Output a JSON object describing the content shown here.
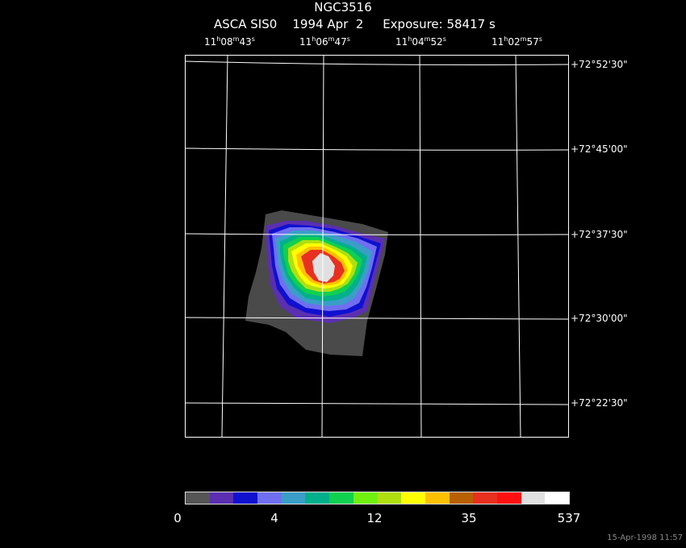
{
  "header": {
    "object": "NGC3516",
    "instrument": "ASCA SIS0",
    "date": "1994 Apr  2",
    "exposure": "Exposure: 58417 s"
  },
  "ra_labels": [
    {
      "h": "11",
      "m": "08",
      "s": "43"
    },
    {
      "h": "11",
      "m": "06",
      "s": "47"
    },
    {
      "h": "11",
      "m": "04",
      "s": "52"
    },
    {
      "h": "11",
      "m": "02",
      "s": "57"
    }
  ],
  "dec_labels": [
    "+72°52'30\"",
    "+72°45'00\"",
    "+72°37'30\"",
    "+72°30'00\"",
    "+72°22'30\""
  ],
  "colorbar": {
    "colors": [
      "#555555",
      "#5a2fb0",
      "#1010d0",
      "#6f6ff0",
      "#3a9ec8",
      "#00b08a",
      "#10d050",
      "#70f010",
      "#b0e010",
      "#ffff00",
      "#ffc000",
      "#b86000",
      "#e83020",
      "#ff1010",
      "#e0e0e0",
      "#ffffff"
    ],
    "tick_labels": [
      "0",
      "4",
      "12",
      "35",
      "537"
    ]
  },
  "timestamp": "15-Apr-1998 11:57"
}
